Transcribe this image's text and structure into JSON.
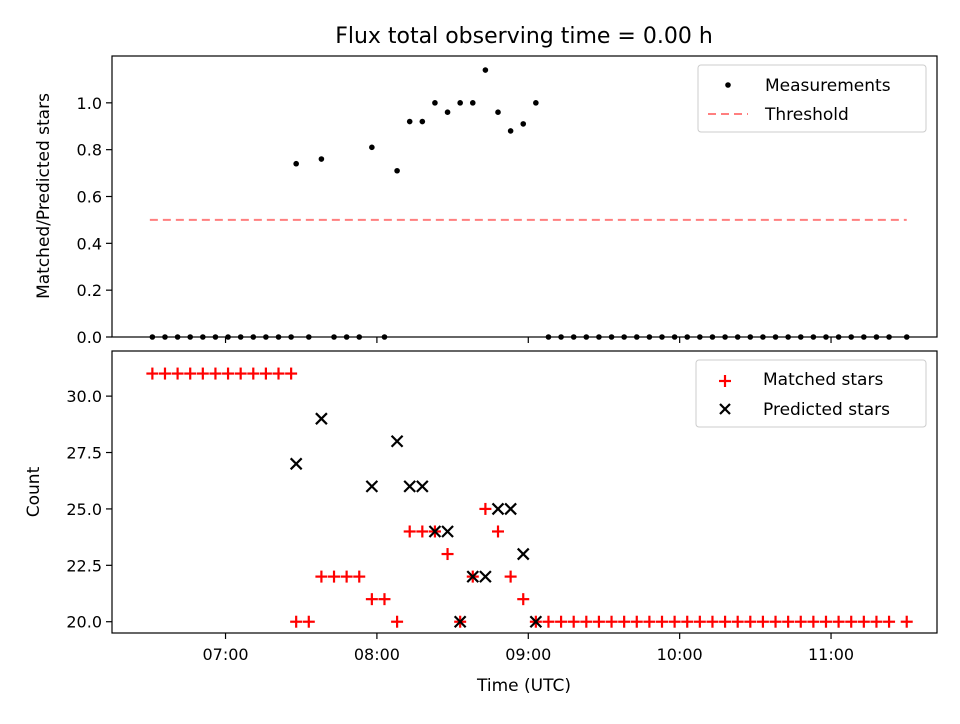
{
  "title": "Flux total observing time = 0.00 h",
  "chart_data": [
    {
      "type": "scatter",
      "panel": "top",
      "ylabel": "Matched/Predicted stars",
      "xlabel": "",
      "xlim": [
        "06:15",
        "11:42"
      ],
      "ylim": [
        0,
        1.2
      ],
      "yticks": [
        0.0,
        0.2,
        0.4,
        0.6,
        0.8,
        1.0
      ],
      "yticklabels": [
        "0.0",
        "0.2",
        "0.4",
        "0.6",
        "0.8",
        "1.0"
      ],
      "grid": false,
      "legend_position": "upper right",
      "colors": {
        "measurements": "#000000",
        "threshold": "#ff7f7f"
      },
      "threshold": {
        "name": "Threshold",
        "value": 0.5,
        "x_range": [
          "06:30",
          "11:30"
        ]
      },
      "series": [
        {
          "name": "Measurements",
          "points": [
            [
              "06:31",
              0
            ],
            [
              "06:36",
              0
            ],
            [
              "06:41",
              0
            ],
            [
              "06:46",
              0
            ],
            [
              "06:51",
              0
            ],
            [
              "06:56",
              0
            ],
            [
              "07:01",
              0
            ],
            [
              "07:06",
              0
            ],
            [
              "07:11",
              0
            ],
            [
              "07:16",
              0
            ],
            [
              "07:21",
              0
            ],
            [
              "07:26",
              0
            ],
            [
              "07:28",
              0.74
            ],
            [
              "07:33",
              0
            ],
            [
              "07:38",
              0.76
            ],
            [
              "07:43",
              0
            ],
            [
              "07:48",
              0
            ],
            [
              "07:53",
              0
            ],
            [
              "07:58",
              0.81
            ],
            [
              "08:03",
              0
            ],
            [
              "08:08",
              0.71
            ],
            [
              "08:13",
              0.92
            ],
            [
              "08:18",
              0.92
            ],
            [
              "08:23",
              1.0
            ],
            [
              "08:28",
              0.96
            ],
            [
              "08:33",
              1.0
            ],
            [
              "08:38",
              1.0
            ],
            [
              "08:43",
              1.14
            ],
            [
              "08:48",
              0.96
            ],
            [
              "08:53",
              0.88
            ],
            [
              "08:58",
              0.91
            ],
            [
              "09:03",
              1.0
            ],
            [
              "09:08",
              0
            ],
            [
              "09:13",
              0
            ],
            [
              "09:18",
              0
            ],
            [
              "09:23",
              0
            ],
            [
              "09:28",
              0
            ],
            [
              "09:33",
              0
            ],
            [
              "09:38",
              0
            ],
            [
              "09:43",
              0
            ],
            [
              "09:48",
              0
            ],
            [
              "09:53",
              0
            ],
            [
              "09:58",
              0
            ],
            [
              "10:03",
              0
            ],
            [
              "10:08",
              0
            ],
            [
              "10:13",
              0
            ],
            [
              "10:18",
              0
            ],
            [
              "10:23",
              0
            ],
            [
              "10:28",
              0
            ],
            [
              "10:33",
              0
            ],
            [
              "10:38",
              0
            ],
            [
              "10:43",
              0
            ],
            [
              "10:48",
              0
            ],
            [
              "10:53",
              0
            ],
            [
              "10:58",
              0
            ],
            [
              "11:03",
              0
            ],
            [
              "11:08",
              0
            ],
            [
              "11:13",
              0
            ],
            [
              "11:18",
              0
            ],
            [
              "11:23",
              0
            ],
            [
              "11:30",
              0
            ]
          ]
        }
      ]
    },
    {
      "type": "scatter",
      "panel": "bottom",
      "xlabel": "Time (UTC)",
      "ylabel": "Count",
      "xlim": [
        "06:15",
        "11:42"
      ],
      "ylim": [
        19.5,
        32.0
      ],
      "xticks": [
        "07:00",
        "08:00",
        "09:00",
        "10:00",
        "11:00"
      ],
      "yticks": [
        20.0,
        22.5,
        25.0,
        27.5,
        30.0
      ],
      "yticklabels": [
        "20.0",
        "22.5",
        "25.0",
        "27.5",
        "30.0"
      ],
      "grid": false,
      "legend_position": "upper right",
      "colors": {
        "matched": "#ff0000",
        "predicted": "#000000"
      },
      "series": [
        {
          "name": "Matched stars",
          "marker": "+",
          "points": [
            [
              "06:31",
              31
            ],
            [
              "06:36",
              31
            ],
            [
              "06:41",
              31
            ],
            [
              "06:46",
              31
            ],
            [
              "06:51",
              31
            ],
            [
              "06:56",
              31
            ],
            [
              "07:01",
              31
            ],
            [
              "07:06",
              31
            ],
            [
              "07:11",
              31
            ],
            [
              "07:16",
              31
            ],
            [
              "07:21",
              31
            ],
            [
              "07:26",
              31
            ],
            [
              "07:28",
              20
            ],
            [
              "07:33",
              20
            ],
            [
              "07:38",
              22
            ],
            [
              "07:43",
              22
            ],
            [
              "07:48",
              22
            ],
            [
              "07:53",
              22
            ],
            [
              "07:58",
              21
            ],
            [
              "08:03",
              21
            ],
            [
              "08:08",
              20
            ],
            [
              "08:13",
              24
            ],
            [
              "08:18",
              24
            ],
            [
              "08:23",
              24
            ],
            [
              "08:28",
              23
            ],
            [
              "08:33",
              20
            ],
            [
              "08:38",
              22
            ],
            [
              "08:43",
              25
            ],
            [
              "08:48",
              24
            ],
            [
              "08:53",
              22
            ],
            [
              "08:58",
              21
            ],
            [
              "09:03",
              20
            ],
            [
              "09:08",
              20
            ],
            [
              "09:13",
              20
            ],
            [
              "09:18",
              20
            ],
            [
              "09:23",
              20
            ],
            [
              "09:28",
              20
            ],
            [
              "09:33",
              20
            ],
            [
              "09:38",
              20
            ],
            [
              "09:43",
              20
            ],
            [
              "09:48",
              20
            ],
            [
              "09:53",
              20
            ],
            [
              "09:58",
              20
            ],
            [
              "10:03",
              20
            ],
            [
              "10:08",
              20
            ],
            [
              "10:13",
              20
            ],
            [
              "10:18",
              20
            ],
            [
              "10:23",
              20
            ],
            [
              "10:28",
              20
            ],
            [
              "10:33",
              20
            ],
            [
              "10:38",
              20
            ],
            [
              "10:43",
              20
            ],
            [
              "10:48",
              20
            ],
            [
              "10:53",
              20
            ],
            [
              "10:58",
              20
            ],
            [
              "11:03",
              20
            ],
            [
              "11:08",
              20
            ],
            [
              "11:13",
              20
            ],
            [
              "11:18",
              20
            ],
            [
              "11:23",
              20
            ],
            [
              "11:30",
              20
            ]
          ]
        },
        {
          "name": "Predicted stars",
          "marker": "x",
          "points": [
            [
              "07:28",
              27
            ],
            [
              "07:38",
              29
            ],
            [
              "07:58",
              26
            ],
            [
              "08:08",
              28
            ],
            [
              "08:13",
              26
            ],
            [
              "08:18",
              26
            ],
            [
              "08:23",
              24
            ],
            [
              "08:28",
              24
            ],
            [
              "08:33",
              20
            ],
            [
              "08:38",
              22
            ],
            [
              "08:43",
              22
            ],
            [
              "08:48",
              25
            ],
            [
              "08:53",
              25
            ],
            [
              "08:58",
              23
            ],
            [
              "09:03",
              20
            ]
          ]
        }
      ]
    }
  ]
}
